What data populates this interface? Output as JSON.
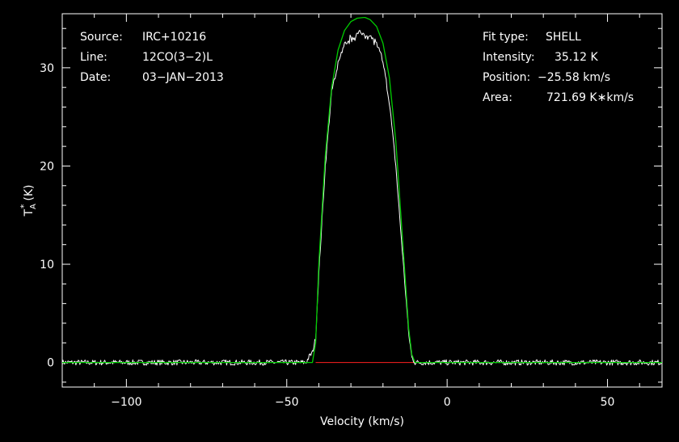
{
  "chart_data": {
    "type": "line",
    "title": "",
    "xlabel": "Velocity (km/s)",
    "ylabel_main": "T",
    "ylabel_sup": "*",
    "ylabel_sub": "A",
    "ylabel_unit": "(K)",
    "xlim": [
      -120,
      67
    ],
    "ylim": [
      -2.5,
      35.5
    ],
    "x_ticks": [
      -100,
      -50,
      0,
      50
    ],
    "x_tick_labels": [
      "−100",
      "−50",
      "0",
      "50"
    ],
    "y_ticks": [
      0,
      10,
      20,
      30
    ],
    "y_tick_labels": [
      "0",
      "10",
      "20",
      "30"
    ],
    "grid": false,
    "colors": {
      "background": "#000000",
      "spectrum": "#ffffff",
      "fit": "#00cc00",
      "baseline": "#ff2020",
      "text": "#ffffff"
    },
    "header_left": [
      {
        "label": "Source:",
        "value": "IRC+10216"
      },
      {
        "label": "Line:",
        "value": "12CO(3−2)L"
      },
      {
        "label": "Date:",
        "value": "03−JAN−2013"
      }
    ],
    "header_right": [
      {
        "label": "Fit type:",
        "value": "SHELL"
      },
      {
        "label": "Intensity:",
        "value": "35.12 K"
      },
      {
        "label": "Position:",
        "value": "−25.58 km/s"
      },
      {
        "label": "Area:",
        "value": "721.69 K∗km/s"
      }
    ],
    "series": [
      {
        "kind": "spectrum",
        "x": [
          -120,
          -60,
          -44,
          -43,
          -42,
          -41,
          -40,
          -38,
          -36,
          -34,
          -32,
          -30,
          -28,
          -26,
          -24,
          -22,
          -20,
          -18,
          -16,
          -14,
          -12,
          -11,
          -10,
          67
        ],
        "y": [
          0,
          0,
          0,
          0.6,
          1.0,
          2.5,
          9.0,
          20.0,
          27.5,
          30.5,
          32.2,
          33.0,
          33.4,
          33.5,
          33.2,
          32.5,
          30.5,
          26.5,
          20.0,
          11.5,
          3.0,
          0.5,
          0,
          0
        ]
      },
      {
        "kind": "fit",
        "x": [
          -120,
          -42,
          -41,
          -40,
          -38,
          -36,
          -34,
          -32,
          -30,
          -28,
          -26,
          -25.58,
          -24,
          -22,
          -20,
          -18,
          -16,
          -14,
          -12,
          -11,
          -10,
          67
        ],
        "y": [
          0,
          0,
          2.0,
          10.0,
          21.0,
          28.0,
          31.8,
          33.8,
          34.7,
          35.05,
          35.12,
          35.12,
          34.9,
          34.2,
          32.5,
          29.0,
          22.5,
          13.0,
          3.5,
          0.8,
          0,
          0
        ]
      },
      {
        "kind": "baseline",
        "x": [
          -41,
          -10
        ],
        "y": [
          0,
          0
        ]
      }
    ]
  }
}
